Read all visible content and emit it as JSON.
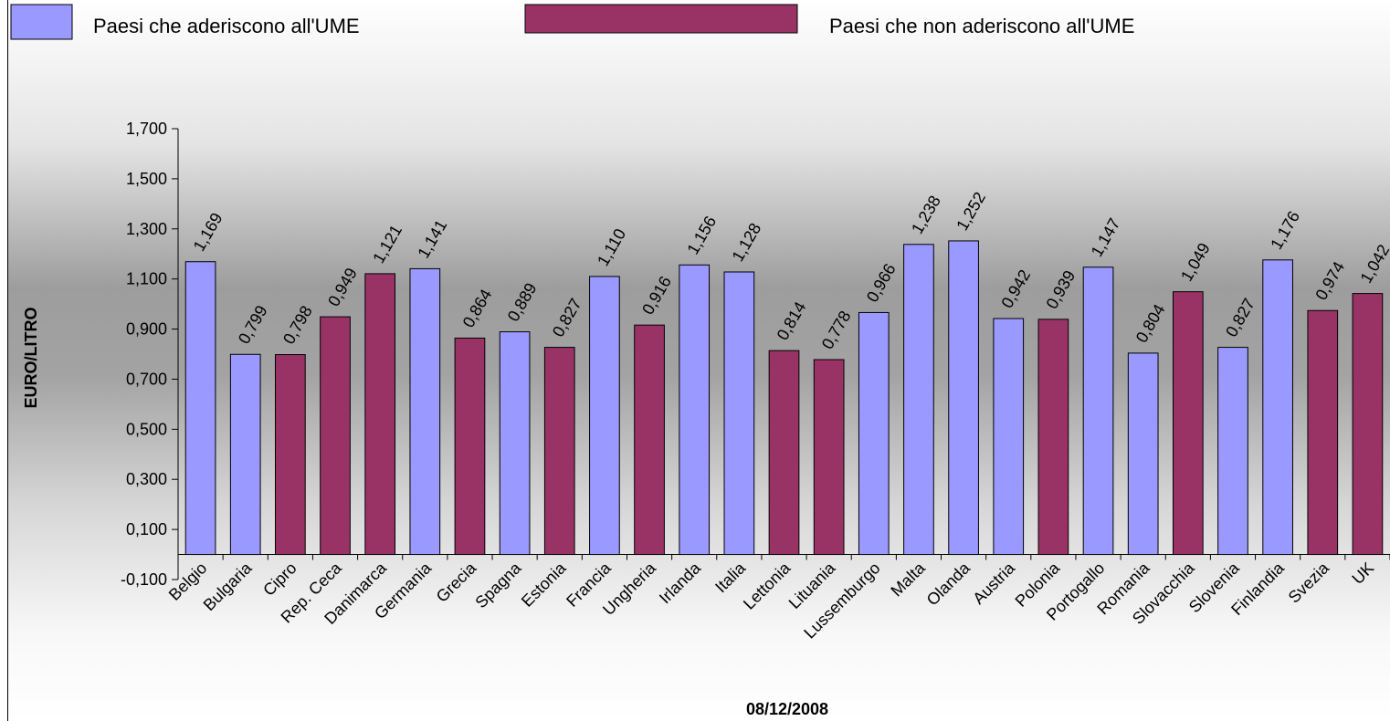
{
  "chart_data": {
    "type": "bar",
    "xlabel": "08/12/2008",
    "ylabel": "EURO/LITRO",
    "ylim": [
      -0.1,
      1.7
    ],
    "yticks": [
      "1,700",
      "1,500",
      "1,300",
      "1,100",
      "0,900",
      "0,700",
      "0,500",
      "0,300",
      "0,100",
      "-0,100"
    ],
    "ytick_values": [
      1.7,
      1.5,
      1.3,
      1.1,
      0.9,
      0.7,
      0.5,
      0.3,
      0.1,
      -0.1
    ],
    "legend_position": "top",
    "series": [
      {
        "name": "Paesi che aderiscono all'UME",
        "color": "#9999FF"
      },
      {
        "name": "Paesi che non aderiscono all'UME",
        "color": "#993366"
      }
    ],
    "categories": [
      "Belgio",
      "Bulgaria",
      "Cipro",
      "Rep. Ceca",
      "Danimarca",
      "Germania",
      "Grecia",
      "Spagna",
      "Estonia",
      "Francia",
      "Ungheria",
      "Irlanda",
      "Italia",
      "Lettonia",
      "Lituania",
      "Lussemburgo",
      "Malta",
      "Olanda",
      "Austria",
      "Polonia",
      "Portogallo",
      "Romania",
      "Slovacchia",
      "Slovenia",
      "Finlandia",
      "Svezia",
      "UK"
    ],
    "values": [
      1.169,
      0.799,
      0.798,
      0.949,
      1.121,
      1.141,
      0.864,
      0.889,
      0.827,
      1.11,
      0.916,
      1.156,
      1.128,
      0.814,
      0.778,
      0.966,
      1.238,
      1.252,
      0.942,
      0.939,
      1.147,
      0.804,
      1.049,
      0.827,
      1.176,
      0.974,
      1.042
    ],
    "value_labels": [
      "1,169",
      "0,799",
      "0,798",
      "0,949",
      "1,121",
      "1,141",
      "0,864",
      "0,889",
      "0,827",
      "1,110",
      "0,916",
      "1,156",
      "1,128",
      "0,814",
      "0,778",
      "0,966",
      "1,238",
      "1,252",
      "0,942",
      "0,939",
      "1,147",
      "0,804",
      "1,049",
      "0,827",
      "1,176",
      "0,974",
      "1,042"
    ],
    "series_index": [
      0,
      0,
      1,
      1,
      1,
      0,
      1,
      0,
      1,
      0,
      1,
      0,
      0,
      1,
      1,
      0,
      0,
      0,
      0,
      1,
      0,
      0,
      1,
      0,
      0,
      1,
      1
    ]
  }
}
